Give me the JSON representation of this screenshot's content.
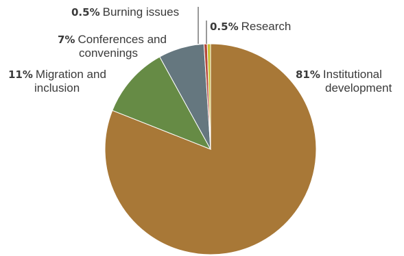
{
  "chart_data": {
    "type": "pie",
    "title": "",
    "slices": [
      {
        "label_line1": "Institutional",
        "label_line2": "development",
        "value": 81,
        "pct_text": "81%",
        "color": "#a87837"
      },
      {
        "label_line1": "Migration and",
        "label_line2": "inclusion",
        "value": 11,
        "pct_text": "11%",
        "color": "#668b45"
      },
      {
        "label_line1": "Conferences and",
        "label_line2": "convenings",
        "value": 7,
        "pct_text": "7%",
        "color": "#65777f"
      },
      {
        "label_line1": "Burning issues",
        "label_line2": "",
        "value": 0.5,
        "pct_text": "0.5%",
        "color": "#b5483a"
      },
      {
        "label_line1": "Research",
        "label_line2": "",
        "value": 0.5,
        "pct_text": "0.5%",
        "color": "#c9c032"
      }
    ]
  }
}
